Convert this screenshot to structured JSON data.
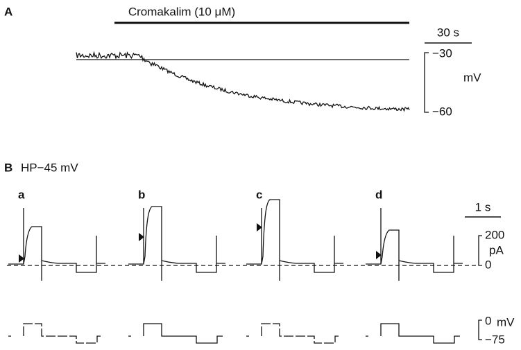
{
  "panel_a": {
    "label": "A",
    "drug": "Cromakalim (10 μM)",
    "time_scale": "30 s",
    "v_top": "−30",
    "v_unit": "mV",
    "v_bottom": "−60"
  },
  "panel_b": {
    "label": "B",
    "holding": "HP−45 mV",
    "sweeps": [
      "a",
      "b",
      "c",
      "d"
    ],
    "time_scale": "1 s",
    "i_top": "200",
    "i_unit": "pA",
    "i_zero": "0",
    "v_top": "0",
    "v_unit": "mV",
    "v_bottom": "−75"
  }
}
